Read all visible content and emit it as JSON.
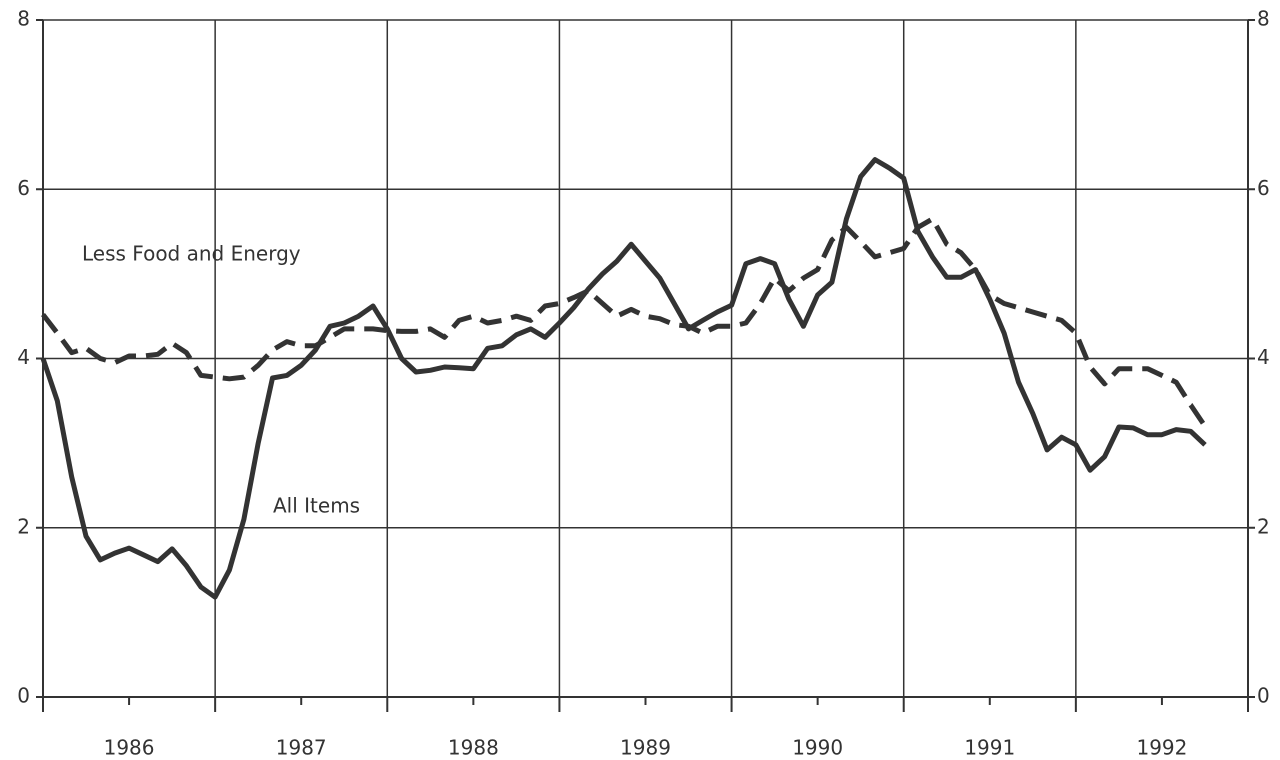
{
  "chart_data": {
    "type": "line",
    "x": [
      1986,
      1986.083,
      1986.167,
      1986.25,
      1986.333,
      1986.417,
      1986.5,
      1986.583,
      1986.667,
      1986.75,
      1986.833,
      1986.917,
      1987,
      1987.083,
      1987.167,
      1987.25,
      1987.333,
      1987.417,
      1987.5,
      1987.583,
      1987.667,
      1987.75,
      1987.833,
      1987.917,
      1988,
      1988.083,
      1988.167,
      1988.25,
      1988.333,
      1988.417,
      1988.5,
      1988.583,
      1988.667,
      1988.75,
      1988.833,
      1988.917,
      1989,
      1989.083,
      1989.167,
      1989.25,
      1989.333,
      1989.417,
      1989.5,
      1989.583,
      1989.667,
      1989.75,
      1989.833,
      1989.917,
      1990,
      1990.083,
      1990.167,
      1990.25,
      1990.333,
      1990.417,
      1990.5,
      1990.583,
      1990.667,
      1990.75,
      1990.833,
      1990.917,
      1991,
      1991.083,
      1991.167,
      1991.25,
      1991.333,
      1991.417,
      1991.5,
      1991.583,
      1991.667,
      1991.75,
      1991.833,
      1991.917,
      1992,
      1992.083,
      1992.167,
      1992.25,
      1992.333,
      1992.417,
      1992.5,
      1992.583,
      1992.667,
      1992.75
    ],
    "series": [
      {
        "name": "All Items",
        "color": "#333333",
        "dash": false,
        "values": [
          4.0,
          3.5,
          2.6,
          1.9,
          1.62,
          1.7,
          1.76,
          1.68,
          1.6,
          1.75,
          1.55,
          1.3,
          1.18,
          1.5,
          2.1,
          3.0,
          3.77,
          3.8,
          3.92,
          4.1,
          4.38,
          4.42,
          4.5,
          4.62,
          4.35,
          4.0,
          3.84,
          3.86,
          3.9,
          3.89,
          3.88,
          4.12,
          4.15,
          4.28,
          4.35,
          4.25,
          4.42,
          4.6,
          4.82,
          5.0,
          5.15,
          5.35,
          5.15,
          4.95,
          4.65,
          4.35,
          4.45,
          4.55,
          4.63,
          5.12,
          5.18,
          5.12,
          4.7,
          4.38,
          4.75,
          4.9,
          5.65,
          6.15,
          6.35,
          6.25,
          6.13,
          5.5,
          5.2,
          4.96,
          4.96,
          5.05,
          4.7,
          4.3,
          3.72,
          3.35,
          2.92,
          3.07,
          2.98,
          2.68,
          2.84,
          3.19,
          3.18,
          3.1,
          3.1,
          3.16,
          3.14,
          2.98
        ]
      },
      {
        "name": "Less Food and Energy",
        "color": "#333333",
        "dash": true,
        "values": [
          4.52,
          4.3,
          4.07,
          4.12,
          4.0,
          3.95,
          4.03,
          4.03,
          4.05,
          4.18,
          4.07,
          3.8,
          3.78,
          3.76,
          3.78,
          3.92,
          4.1,
          4.2,
          4.15,
          4.15,
          4.25,
          4.35,
          4.35,
          4.35,
          4.33,
          4.32,
          4.32,
          4.35,
          4.25,
          4.45,
          4.5,
          4.42,
          4.45,
          4.5,
          4.45,
          4.62,
          4.65,
          4.72,
          4.8,
          4.65,
          4.5,
          4.58,
          4.5,
          4.47,
          4.4,
          4.38,
          4.3,
          4.38,
          4.38,
          4.42,
          4.65,
          4.95,
          4.8,
          4.95,
          5.05,
          5.4,
          5.55,
          5.38,
          5.2,
          5.25,
          5.3,
          5.55,
          5.65,
          5.35,
          5.25,
          5.05,
          4.75,
          4.65,
          4.6,
          4.55,
          4.5,
          4.45,
          4.3,
          3.9,
          3.7,
          3.88,
          3.88,
          3.88,
          3.8,
          3.72,
          3.45,
          3.2
        ]
      }
    ],
    "xlim": [
      1986,
      1993
    ],
    "xgrid": [
      1986,
      1987,
      1988,
      1989,
      1990,
      1991,
      1992,
      1993
    ],
    "xticks": [
      {
        "value": 1986.5,
        "label": "1986"
      },
      {
        "value": 1987.5,
        "label": "1987"
      },
      {
        "value": 1988.5,
        "label": "1988"
      },
      {
        "value": 1989.5,
        "label": "1989"
      },
      {
        "value": 1990.5,
        "label": "1990"
      },
      {
        "value": 1991.5,
        "label": "1991"
      },
      {
        "value": 1992.5,
        "label": "1992"
      }
    ],
    "ylim": [
      0,
      8
    ],
    "yticks": [
      0,
      2,
      4,
      6,
      8
    ],
    "y2lim": [
      0,
      8
    ],
    "y2ticks": [
      0,
      2,
      4,
      6,
      8
    ],
    "grid": true
  }
}
